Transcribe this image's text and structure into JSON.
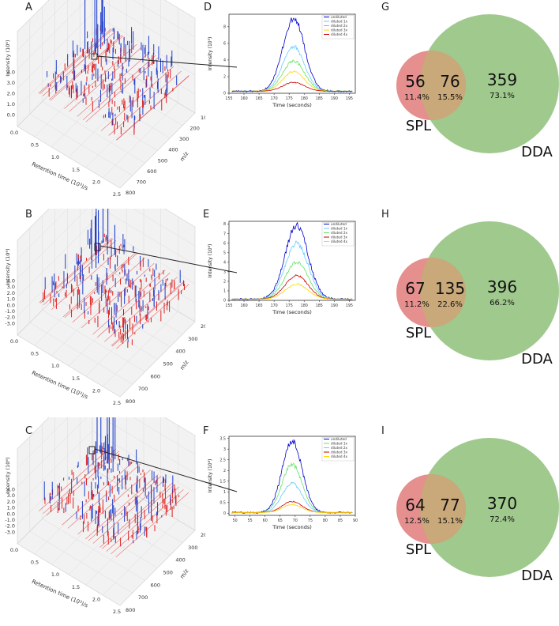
{
  "panels": {
    "A": "A",
    "B": "B",
    "C": "C",
    "D": "D",
    "E": "E",
    "F": "F",
    "G": "G",
    "H": "H",
    "I": "I"
  },
  "chart_data": [
    {
      "id": "A",
      "type": "scatter",
      "title": "",
      "zlabel": "Intensity (10⁶)",
      "xlabel": "Retention time (10³)/s",
      "ylabel": "m/z",
      "z_ticks": [
        "4.0",
        "3.0",
        "2.0",
        "1.0",
        "0.0"
      ],
      "x_ticks": [
        "0.0",
        "0.5",
        "1.0",
        "1.5",
        "2.0",
        "2.5"
      ],
      "y_ticks": [
        "800",
        "700",
        "600",
        "500",
        "400",
        "300",
        "200",
        "100"
      ]
    },
    {
      "id": "B",
      "type": "scatter",
      "zlabel": "Intensity (10⁶)",
      "xlabel": "Retention time (10³)/s",
      "ylabel": "m/z",
      "z_ticks": [
        "4.0",
        "3.0",
        "2.0",
        "1.0",
        "0.0",
        "-1.0",
        "-2.0",
        "-3.0"
      ],
      "x_ticks": [
        "0.0",
        "0.5",
        "1.0",
        "1.5",
        "2.0",
        "2.5"
      ],
      "y_ticks": [
        "800",
        "700",
        "600",
        "500",
        "400",
        "300",
        "200"
      ]
    },
    {
      "id": "C",
      "type": "scatter",
      "zlabel": "Intensity (10⁶)",
      "xlabel": "Retention time (10³)/s",
      "ylabel": "m/z",
      "z_ticks": [
        "4.0",
        "3.0",
        "2.0",
        "1.0",
        "0.0",
        "-1.0",
        "-2.0",
        "-3.0"
      ],
      "x_ticks": [
        "0.0",
        "0.5",
        "1.0",
        "1.5",
        "2.0",
        "2.5"
      ],
      "y_ticks": [
        "800",
        "700",
        "600",
        "500",
        "400",
        "300",
        "200"
      ]
    },
    {
      "id": "D",
      "type": "line",
      "xlabel": "Time (seconds)",
      "ylabel": "Intensity (10⁵)",
      "xlim": [
        155,
        197
      ],
      "ylim": [
        0,
        9.5
      ],
      "x_ticks": [
        155,
        160,
        165,
        170,
        175,
        180,
        185,
        190,
        195
      ],
      "y_ticks": [
        0,
        2,
        4,
        6,
        8
      ],
      "peak_center": 176.5,
      "peak_width": 3.6,
      "baseline": 0.25,
      "series": [
        {
          "name": "undiluted",
          "color": "#0000cc",
          "peak": 9.0
        },
        {
          "name": "diluted 1x",
          "color": "#66ccff",
          "peak": 5.6
        },
        {
          "name": "diluted 2x",
          "color": "#66e066",
          "peak": 3.9
        },
        {
          "name": "diluted 3x",
          "color": "#ffd700",
          "peak": 2.6
        },
        {
          "name": "diluted 4x",
          "color": "#cc0000",
          "peak": 1.3
        }
      ]
    },
    {
      "id": "E",
      "type": "line",
      "xlabel": "Time (seconds)",
      "ylabel": "Intensity (10⁶)",
      "xlim": [
        155,
        197
      ],
      "ylim": [
        0,
        8.3
      ],
      "x_ticks": [
        155,
        160,
        165,
        170,
        175,
        180,
        185,
        190,
        195
      ],
      "y_ticks": [
        0,
        1,
        2,
        3,
        4,
        5,
        6,
        7,
        8
      ],
      "peak_center": 177.5,
      "peak_width": 3.8,
      "baseline": 0.12,
      "series": [
        {
          "name": "undiluted",
          "color": "#0000cc",
          "peak": 7.9
        },
        {
          "name": "diluted 1x",
          "color": "#66ccff",
          "peak": 6.0
        },
        {
          "name": "diluted 2x",
          "color": "#66e066",
          "peak": 4.0
        },
        {
          "name": "diluted 3x",
          "color": "#cc0000",
          "peak": 2.6
        },
        {
          "name": "diluted 4x",
          "color": "#ffd700",
          "peak": 1.7
        }
      ]
    },
    {
      "id": "F",
      "type": "line",
      "xlabel": "Time (seconds)",
      "ylabel": "Intensity (10⁶)",
      "xlim": [
        48,
        90
      ],
      "ylim": [
        -0.1,
        3.6
      ],
      "x_ticks": [
        50,
        55,
        60,
        65,
        70,
        75,
        80,
        85,
        90
      ],
      "y_ticks": [
        0.0,
        0.5,
        1.0,
        1.5,
        2.0,
        2.5,
        3.0,
        3.5
      ],
      "peak_center": 69,
      "peak_width": 3.3,
      "baseline": 0.03,
      "series": [
        {
          "name": "undiluted",
          "color": "#0000cc",
          "peak": 3.4
        },
        {
          "name": "diluted 1x",
          "color": "#66e066",
          "peak": 2.3
        },
        {
          "name": "diluted 2x",
          "color": "#66ccff",
          "peak": 1.4
        },
        {
          "name": "diluted 3x",
          "color": "#cc0000",
          "peak": 0.55
        },
        {
          "name": "diluted 4x",
          "color": "#ffd700",
          "peak": 0.4
        }
      ]
    },
    {
      "id": "G",
      "type": "venn",
      "sets": {
        "left": "SPL",
        "right": "DDA"
      },
      "counts": {
        "spl_only": "56",
        "both": "76",
        "dda_only": "359"
      },
      "percents": {
        "spl_only": "11.4%",
        "both": "15.5%",
        "dda_only": "73.1%"
      }
    },
    {
      "id": "H",
      "type": "venn",
      "sets": {
        "left": "SPL",
        "right": "DDA"
      },
      "counts": {
        "spl_only": "67",
        "both": "135",
        "dda_only": "396"
      },
      "percents": {
        "spl_only": "11.2%",
        "both": "22.6%",
        "dda_only": "66.2%"
      }
    },
    {
      "id": "I",
      "type": "venn",
      "sets": {
        "left": "SPL",
        "right": "DDA"
      },
      "counts": {
        "spl_only": "64",
        "both": "77",
        "dda_only": "370"
      },
      "percents": {
        "spl_only": "12.5%",
        "both": "15.1%",
        "dda_only": "72.4%"
      }
    }
  ],
  "colors": {
    "spl": "#e07b7b",
    "dda": "#8fbf7a",
    "overlap": "#c9a97a",
    "blue": "#1f3fcc",
    "red": "#e02020"
  }
}
